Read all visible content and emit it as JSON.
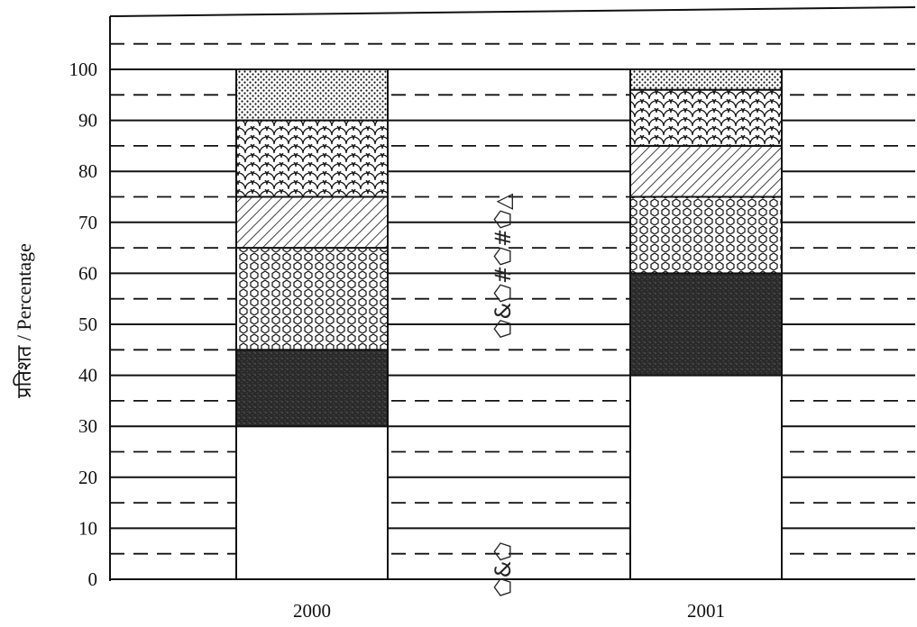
{
  "chart_data": {
    "type": "bar",
    "stacked": true,
    "ylabel": "प्रतिशत / Percentage",
    "ylim": [
      0,
      100
    ],
    "yticks": [
      0,
      10,
      20,
      30,
      40,
      50,
      60,
      70,
      80,
      90,
      100
    ],
    "grid": "solid lines every 10, dashed lines at every 5 between",
    "categories": [
      "2000",
      "2001"
    ],
    "series": [
      {
        "pattern": "plain",
        "values": [
          30,
          40
        ]
      },
      {
        "pattern": "dark-speckle",
        "values": [
          15,
          20
        ]
      },
      {
        "pattern": "hexagon-mesh",
        "values": [
          20,
          15
        ]
      },
      {
        "pattern": "diagonal-hatch",
        "values": [
          10,
          10
        ]
      },
      {
        "pattern": "scales",
        "values": [
          15,
          11
        ]
      },
      {
        "pattern": "dots",
        "values": [
          10,
          4
        ]
      }
    ]
  },
  "annotations": {
    "vertical_symbols_top": "⬠&⬠#⬠#⬠△",
    "vertical_symbols_bottom": "⬠&⬠"
  }
}
